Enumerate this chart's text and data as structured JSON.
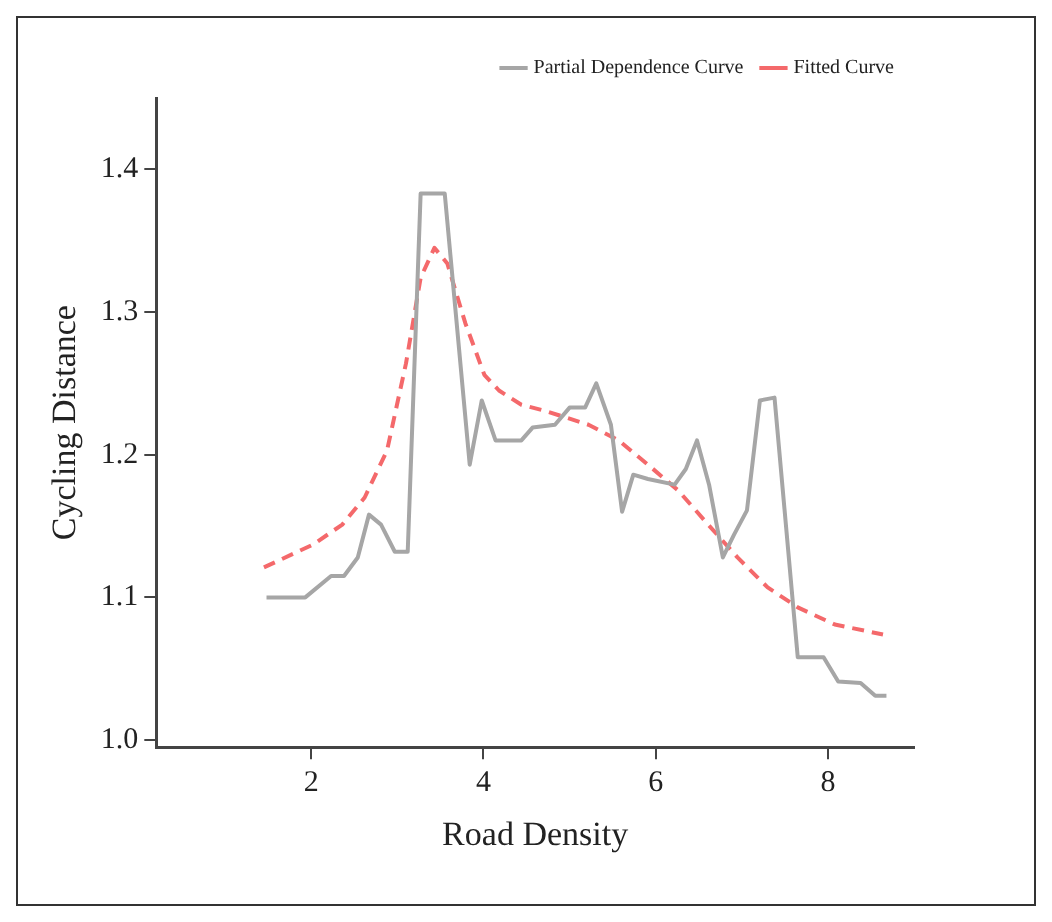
{
  "chart_data": {
    "type": "line",
    "xlabel": "Road Density",
    "ylabel": "Cycling Distance",
    "xlim": [
      0.2,
      9
    ],
    "ylim": [
      0.995,
      1.45
    ],
    "xticks": [
      2,
      4,
      6,
      8
    ],
    "yticks": [
      {
        "value": 1,
        "label": "1.0"
      },
      1.1,
      1.2,
      1.3,
      1.4
    ],
    "grid": false,
    "legend": "top right",
    "marker": "none",
    "series": [
      {
        "name": "Partial Dependence Curve",
        "color": "#a6a6a6",
        "line_style": "solid",
        "x": [
          1.48,
          1.93,
          2.23,
          2.38,
          2.54,
          2.67,
          2.81,
          2.97,
          3.12,
          3.27,
          3.55,
          3.84,
          3.98,
          4.14,
          4.44,
          4.57,
          4.83,
          5.0,
          5.18,
          5.31,
          5.48,
          5.61,
          5.74,
          5.91,
          6.22,
          6.35,
          6.48,
          6.62,
          6.78,
          6.91,
          7.06,
          7.21,
          7.38,
          7.65,
          7.95,
          8.12,
          8.38,
          8.55,
          8.68
        ],
        "values": [
          1.1,
          1.1,
          1.115,
          1.115,
          1.128,
          1.158,
          1.151,
          1.132,
          1.132,
          1.383,
          1.383,
          1.193,
          1.238,
          1.21,
          1.21,
          1.219,
          1.221,
          1.233,
          1.233,
          1.25,
          1.221,
          1.16,
          1.186,
          1.183,
          1.179,
          1.19,
          1.21,
          1.179,
          1.128,
          1.144,
          1.161,
          1.238,
          1.24,
          1.058,
          1.058,
          1.041,
          1.04,
          1.031,
          1.031
        ]
      },
      {
        "name": "Fitted Curve",
        "color": "#f4696b",
        "line_style": "dashed",
        "x": [
          1.45,
          2.02,
          2.36,
          2.62,
          2.88,
          3.1,
          3.27,
          3.43,
          3.58,
          3.79,
          4.01,
          4.18,
          4.44,
          4.7,
          5.22,
          5.57,
          5.91,
          6.26,
          6.61,
          6.95,
          7.3,
          7.65,
          8.08,
          8.64
        ],
        "values": [
          1.121,
          1.137,
          1.151,
          1.17,
          1.203,
          1.264,
          1.324,
          1.345,
          1.334,
          1.292,
          1.256,
          1.245,
          1.235,
          1.231,
          1.221,
          1.21,
          1.193,
          1.175,
          1.151,
          1.128,
          1.107,
          1.093,
          1.081,
          1.074
        ]
      }
    ]
  }
}
